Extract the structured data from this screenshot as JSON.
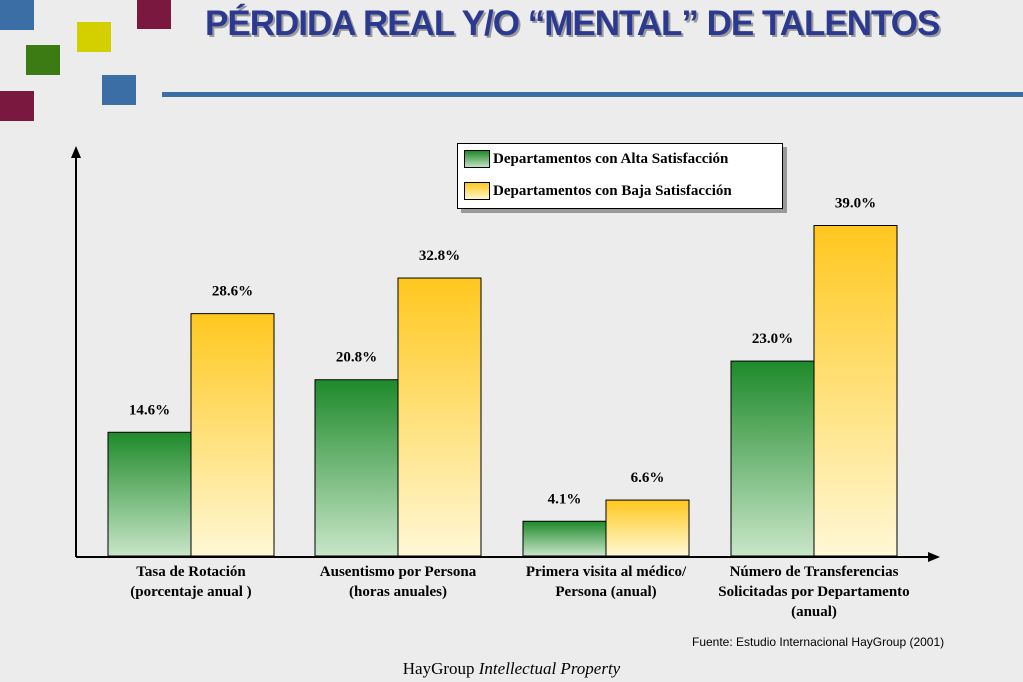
{
  "header": {
    "title": "PÉRDIDA REAL Y/O “MENTAL” DE TALENTOS",
    "colors": {
      "title": "#2b3990",
      "rule": "#3b6ea5"
    },
    "decorative_squares": [
      {
        "name": "blue-square-top-left",
        "color": "#3b6ea5"
      },
      {
        "name": "yellow-square",
        "color": "#d4d000"
      },
      {
        "name": "maroon-square-top",
        "color": "#7a1840"
      },
      {
        "name": "green-square",
        "color": "#3c7a14"
      },
      {
        "name": "blue-square-right",
        "color": "#3b6ea5"
      },
      {
        "name": "maroon-square-bottom",
        "color": "#7a1840"
      }
    ]
  },
  "chart_data": {
    "type": "bar",
    "categories": [
      [
        "Tasa de Rotación",
        "(porcentaje anual )"
      ],
      [
        "Ausentismo por Persona",
        "(horas anuales)"
      ],
      [
        "Primera visita al médico/",
        "Persona (anual)"
      ],
      [
        "Número de Transferencias",
        "Solicitadas por Departamento",
        "(anual)"
      ]
    ],
    "series": [
      {
        "name": "Departamentos con Alta Satisfacción",
        "values": [
          14.6,
          20.8,
          4.1,
          23.0
        ],
        "labels": [
          "14.6%",
          "20.8%",
          "4.1%",
          "23.0%"
        ],
        "color": "#1e8a2a"
      },
      {
        "name": "Departamentos con Baja Satisfacción",
        "values": [
          28.6,
          32.8,
          6.6,
          39.0
        ],
        "labels": [
          "28.6%",
          "32.8%",
          "6.6%",
          "39.0%"
        ],
        "color": "#ffc81e"
      }
    ],
    "ylim": [
      0,
      43
    ],
    "grid": false,
    "legend_position": "top-right"
  },
  "source": "Fuente: Estudio Internacional HayGroup (2001)",
  "footer": {
    "brand": "HayGroup",
    "tagline": "Intellectual Property"
  }
}
